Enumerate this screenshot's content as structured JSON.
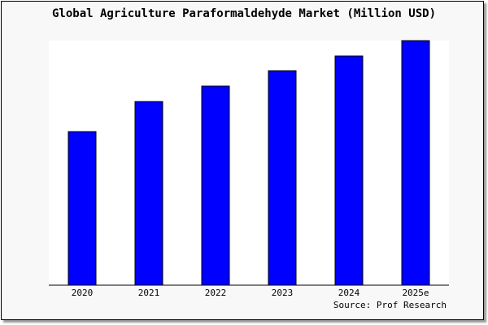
{
  "chart_data": {
    "type": "bar",
    "title": "Global Agriculture Paraformaldehyde Market (Million USD)",
    "categories": [
      "2020",
      "2021",
      "2022",
      "2023",
      "2024",
      "2025e"
    ],
    "values": [
      62.8,
      75.1,
      81.4,
      87.7,
      93.7,
      100
    ],
    "value_note_units": "relative (no y-axis printed; 2025e = 100)",
    "ylim": [
      0,
      100
    ],
    "xlabel": "",
    "ylabel": "",
    "grid": false,
    "legend": "none",
    "source": "Source: Prof Research",
    "colors": {
      "bar": "#0000ff",
      "bar_outline": "#000000",
      "plot_bg": "#ffffff",
      "frame_bg": "#f8f8f8"
    }
  }
}
